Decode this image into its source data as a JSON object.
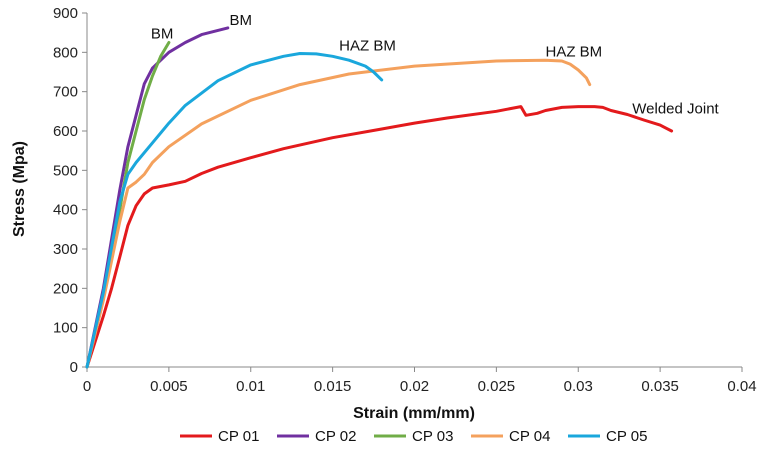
{
  "chart_data": {
    "type": "line",
    "xlabel": "Strain (mm/mm)",
    "ylabel": "Stress (Mpa)",
    "xlim": [
      0,
      0.04
    ],
    "ylim": [
      0,
      900
    ],
    "x_ticks": [
      "0",
      "0.005",
      "0.01",
      "0.015",
      "0.02",
      "0.025",
      "0.03",
      "0.035",
      "0.04"
    ],
    "y_ticks": [
      "0",
      "100",
      "200",
      "300",
      "400",
      "500",
      "600",
      "700",
      "800",
      "900"
    ],
    "grid": false,
    "legend_position": "bottom",
    "series": [
      {
        "name": "CP 01",
        "color": "#e31a1c",
        "points": [
          [
            0,
            0
          ],
          [
            0.001,
            130
          ],
          [
            0.0015,
            200
          ],
          [
            0.002,
            280
          ],
          [
            0.0025,
            360
          ],
          [
            0.003,
            410
          ],
          [
            0.0035,
            440
          ],
          [
            0.004,
            455
          ],
          [
            0.005,
            463
          ],
          [
            0.006,
            472
          ],
          [
            0.007,
            492
          ],
          [
            0.008,
            508
          ],
          [
            0.01,
            532
          ],
          [
            0.012,
            555
          ],
          [
            0.015,
            583
          ],
          [
            0.018,
            605
          ],
          [
            0.02,
            620
          ],
          [
            0.022,
            633
          ],
          [
            0.025,
            650
          ],
          [
            0.0265,
            662
          ],
          [
            0.0268,
            640
          ],
          [
            0.0275,
            645
          ],
          [
            0.028,
            652
          ],
          [
            0.029,
            660
          ],
          [
            0.03,
            662
          ],
          [
            0.031,
            662
          ],
          [
            0.0315,
            660
          ],
          [
            0.032,
            652
          ],
          [
            0.033,
            642
          ],
          [
            0.034,
            628
          ],
          [
            0.035,
            615
          ],
          [
            0.0357,
            600
          ]
        ]
      },
      {
        "name": "CP 02",
        "color": "#7030a0",
        "points": [
          [
            0,
            0
          ],
          [
            0.001,
            200
          ],
          [
            0.002,
            450
          ],
          [
            0.0025,
            560
          ],
          [
            0.003,
            640
          ],
          [
            0.0035,
            720
          ],
          [
            0.004,
            760
          ],
          [
            0.005,
            800
          ],
          [
            0.006,
            825
          ],
          [
            0.007,
            845
          ],
          [
            0.0086,
            862
          ]
        ]
      },
      {
        "name": "CP 03",
        "color": "#70ad47",
        "points": [
          [
            0,
            0
          ],
          [
            0.001,
            180
          ],
          [
            0.002,
            400
          ],
          [
            0.0025,
            520
          ],
          [
            0.003,
            600
          ],
          [
            0.0035,
            680
          ],
          [
            0.004,
            740
          ],
          [
            0.0045,
            790
          ],
          [
            0.005,
            825
          ]
        ]
      },
      {
        "name": "CP 04",
        "color": "#f4a15d",
        "points": [
          [
            0,
            0
          ],
          [
            0.001,
            170
          ],
          [
            0.002,
            370
          ],
          [
            0.0025,
            455
          ],
          [
            0.003,
            470
          ],
          [
            0.0035,
            490
          ],
          [
            0.004,
            520
          ],
          [
            0.005,
            560
          ],
          [
            0.007,
            618
          ],
          [
            0.01,
            678
          ],
          [
            0.013,
            718
          ],
          [
            0.016,
            745
          ],
          [
            0.02,
            765
          ],
          [
            0.025,
            778
          ],
          [
            0.028,
            780
          ],
          [
            0.029,
            778
          ],
          [
            0.0295,
            770
          ],
          [
            0.03,
            755
          ],
          [
            0.0305,
            735
          ],
          [
            0.0307,
            718
          ]
        ]
      },
      {
        "name": "CP 05",
        "color": "#1aa7dc",
        "points": [
          [
            0,
            0
          ],
          [
            0.001,
            190
          ],
          [
            0.002,
            420
          ],
          [
            0.0025,
            490
          ],
          [
            0.003,
            520
          ],
          [
            0.004,
            570
          ],
          [
            0.005,
            620
          ],
          [
            0.006,
            665
          ],
          [
            0.008,
            728
          ],
          [
            0.01,
            768
          ],
          [
            0.012,
            790
          ],
          [
            0.013,
            797
          ],
          [
            0.014,
            796
          ],
          [
            0.015,
            790
          ],
          [
            0.016,
            780
          ],
          [
            0.017,
            765
          ],
          [
            0.0175,
            750
          ],
          [
            0.018,
            730
          ]
        ]
      }
    ],
    "annotations": [
      {
        "text": "BM",
        "x": 0.0039,
        "y": 835
      },
      {
        "text": "BM",
        "x": 0.0087,
        "y": 870
      },
      {
        "text": "HAZ BM",
        "x": 0.0154,
        "y": 805
      },
      {
        "text": "HAZ BM",
        "x": 0.028,
        "y": 790
      },
      {
        "text": "Welded Joint",
        "x": 0.0333,
        "y": 645
      }
    ]
  }
}
